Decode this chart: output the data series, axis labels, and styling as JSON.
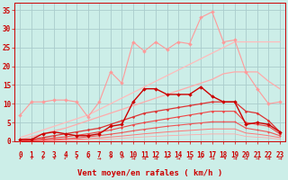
{
  "background_color": "#cceee8",
  "grid_color": "#aacccc",
  "x_labels": [
    0,
    1,
    2,
    3,
    4,
    5,
    6,
    7,
    8,
    9,
    10,
    11,
    12,
    13,
    14,
    15,
    16,
    17,
    18,
    19,
    20,
    21,
    22,
    23
  ],
  "xlabel": "Vent moyen/en rafales ( km/h )",
  "ylabel_ticks": [
    0,
    5,
    10,
    15,
    20,
    25,
    30,
    35
  ],
  "ylim": [
    0,
    37
  ],
  "xlim": [
    -0.5,
    23.5
  ],
  "lines": [
    {
      "comment": "light pink jagged line with diamonds - top erratic line",
      "y": [
        7.0,
        10.5,
        10.5,
        11.0,
        11.0,
        10.5,
        6.5,
        10.5,
        18.5,
        15.5,
        26.5,
        24.0,
        26.5,
        24.5,
        26.5,
        26.0,
        33.0,
        34.5,
        26.5,
        27.0,
        18.5,
        14.0,
        10.0,
        10.5
      ],
      "color": "#ff9999",
      "lw": 0.8,
      "marker": "D",
      "ms": 2.0,
      "zorder": 3
    },
    {
      "comment": "light pink smooth diagonal - nearly straight upper envelope",
      "y": [
        1.0,
        2.0,
        3.0,
        4.0,
        5.0,
        6.0,
        7.0,
        8.5,
        10.0,
        11.5,
        13.0,
        14.5,
        16.0,
        17.5,
        19.0,
        20.5,
        22.0,
        23.5,
        25.0,
        26.5,
        26.5,
        26.5,
        26.5,
        26.5
      ],
      "color": "#ffbbbb",
      "lw": 0.9,
      "marker": null,
      "ms": 0,
      "zorder": 2
    },
    {
      "comment": "medium pink diagonal - second smooth line",
      "y": [
        0.5,
        1.2,
        2.0,
        2.8,
        3.5,
        4.5,
        5.5,
        6.5,
        7.5,
        8.5,
        9.5,
        10.5,
        11.5,
        12.5,
        13.5,
        14.5,
        15.5,
        16.5,
        18.0,
        18.5,
        18.5,
        18.5,
        16.0,
        14.0
      ],
      "color": "#ffaaaa",
      "lw": 0.9,
      "marker": null,
      "ms": 0,
      "zorder": 2
    },
    {
      "comment": "dark red line with diamonds - main middle line",
      "y": [
        0.5,
        0.5,
        2.0,
        2.5,
        2.0,
        1.5,
        1.5,
        2.0,
        4.0,
        4.5,
        10.5,
        14.0,
        14.0,
        12.5,
        12.5,
        12.5,
        14.5,
        12.0,
        10.5,
        10.5,
        4.5,
        5.0,
        4.5,
        2.5
      ],
      "color": "#cc0000",
      "lw": 1.0,
      "marker": "D",
      "ms": 2.0,
      "zorder": 5
    },
    {
      "comment": "red smooth diagonal line upper",
      "y": [
        0.2,
        0.5,
        1.0,
        1.5,
        2.0,
        2.5,
        3.0,
        3.5,
        4.5,
        5.5,
        6.5,
        7.5,
        8.0,
        8.5,
        9.0,
        9.5,
        10.0,
        10.5,
        10.5,
        10.5,
        8.0,
        7.5,
        5.5,
        2.5
      ],
      "color": "#dd3333",
      "lw": 0.9,
      "marker": "D",
      "ms": 1.5,
      "zorder": 4
    },
    {
      "comment": "red smooth diagonal line middle",
      "y": [
        0.1,
        0.3,
        0.6,
        0.9,
        1.2,
        1.6,
        2.0,
        2.5,
        3.0,
        3.7,
        4.4,
        5.0,
        5.5,
        6.0,
        6.5,
        7.0,
        7.5,
        8.0,
        8.0,
        8.0,
        5.0,
        4.5,
        4.0,
        2.0
      ],
      "color": "#ee4444",
      "lw": 0.8,
      "marker": "D",
      "ms": 1.3,
      "zorder": 4
    },
    {
      "comment": "red smooth diagonal line lower",
      "y": [
        0.05,
        0.15,
        0.3,
        0.5,
        0.7,
        0.9,
        1.2,
        1.5,
        1.9,
        2.3,
        2.8,
        3.2,
        3.6,
        4.0,
        4.3,
        4.6,
        4.9,
        5.2,
        5.2,
        5.2,
        3.5,
        3.0,
        2.5,
        1.5
      ],
      "color": "#ee5555",
      "lw": 0.8,
      "marker": "D",
      "ms": 1.0,
      "zorder": 3
    },
    {
      "comment": "lightest red smooth diagonal - bottom",
      "y": [
        0.02,
        0.08,
        0.18,
        0.3,
        0.42,
        0.56,
        0.72,
        0.9,
        1.15,
        1.4,
        1.7,
        2.0,
        2.25,
        2.5,
        2.7,
        2.9,
        3.1,
        3.3,
        3.3,
        3.3,
        2.2,
        1.9,
        1.5,
        1.0
      ],
      "color": "#ff7777",
      "lw": 0.7,
      "marker": null,
      "ms": 0,
      "zorder": 2
    },
    {
      "comment": "lightest line at very bottom",
      "y": [
        0.01,
        0.04,
        0.1,
        0.17,
        0.24,
        0.32,
        0.42,
        0.53,
        0.67,
        0.82,
        1.0,
        1.18,
        1.33,
        1.48,
        1.6,
        1.72,
        1.83,
        1.95,
        1.95,
        1.95,
        1.3,
        1.1,
        0.9,
        0.6
      ],
      "color": "#ffaaaa",
      "lw": 0.6,
      "marker": null,
      "ms": 0,
      "zorder": 2
    }
  ],
  "wind_arrows": [
    "↓",
    "↓",
    "↙",
    "↙",
    "↓",
    "↓",
    "↖",
    "→",
    "↗",
    "↗",
    "→",
    "→",
    "→",
    "↗",
    "→",
    "→",
    "↗",
    "→",
    "↘",
    "→",
    "→",
    "→",
    "→",
    "→"
  ],
  "label_fontsize": 6.5,
  "tick_fontsize": 5.5
}
